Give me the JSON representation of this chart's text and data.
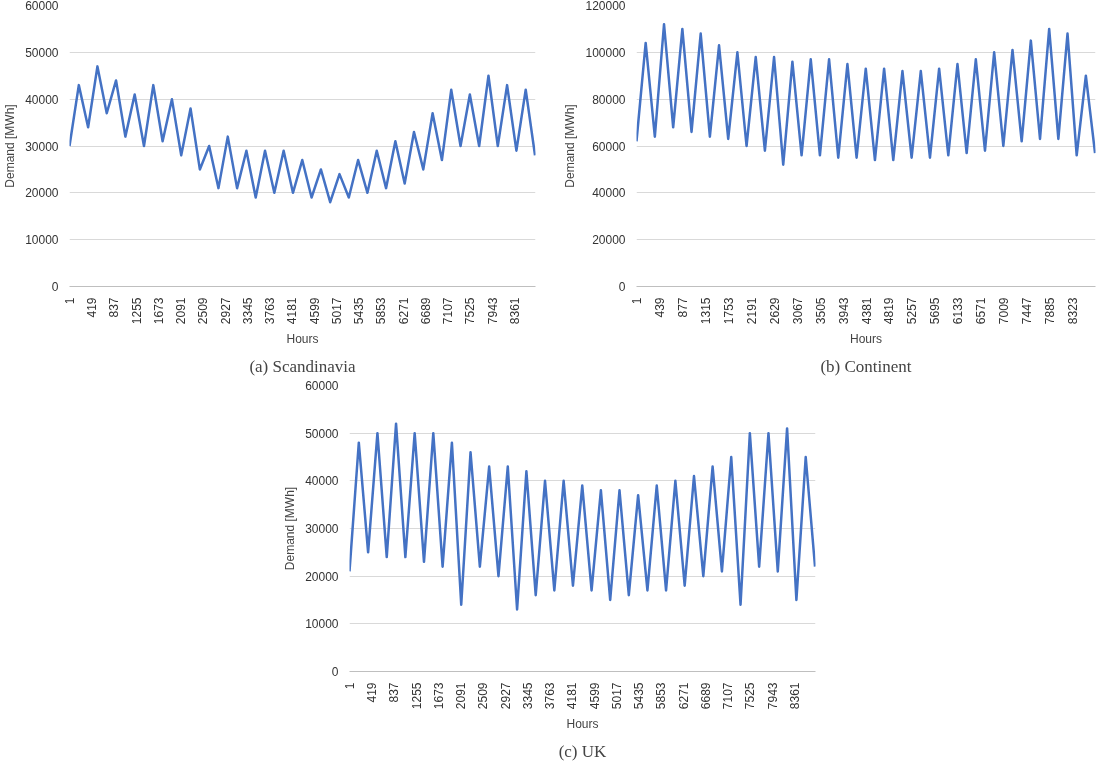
{
  "chart_data": [
    {
      "type": "line",
      "ylabel": "Demand [MWh]",
      "xlabel": "Hours",
      "annotations": [
        "(a) Scandinavia"
      ],
      "grid": "y",
      "xlim": [
        1,
        8760
      ],
      "ylim": [
        0,
        60000
      ],
      "yticks": [
        0,
        10000,
        20000,
        30000,
        40000,
        50000,
        60000
      ],
      "xticks": [
        1,
        419,
        837,
        1255,
        1673,
        2091,
        2509,
        2927,
        3345,
        3763,
        4181,
        4599,
        5017,
        5435,
        5853,
        6271,
        6689,
        7107,
        7525,
        7943,
        8361
      ],
      "x": [
        1,
        176,
        351,
        526,
        701,
        876,
        1051,
        1226,
        1401,
        1576,
        1751,
        1926,
        2101,
        2276,
        2451,
        2626,
        2801,
        2976,
        3151,
        3326,
        3501,
        3676,
        3851,
        4026,
        4201,
        4376,
        4551,
        4726,
        4901,
        5076,
        5251,
        5426,
        5601,
        5776,
        5951,
        6126,
        6301,
        6476,
        6651,
        6826,
        7001,
        7176,
        7351,
        7526,
        7701,
        7876,
        8051,
        8226,
        8401,
        8576,
        8751
      ],
      "series": [
        {
          "color": "#4472c4",
          "values": [
            30000,
            43000,
            34000,
            47000,
            37000,
            44000,
            32000,
            41000,
            30000,
            43000,
            31000,
            40000,
            28000,
            38000,
            25000,
            30000,
            21000,
            32000,
            21000,
            29000,
            19000,
            29000,
            20000,
            29000,
            20000,
            27000,
            19000,
            25000,
            18000,
            24000,
            19000,
            27000,
            20000,
            29000,
            21000,
            31000,
            22000,
            33000,
            25000,
            37000,
            27000,
            42000,
            30000,
            41000,
            30000,
            45000,
            30000,
            43000,
            29000,
            42000,
            28000
          ]
        }
      ]
    },
    {
      "type": "line",
      "ylabel": "Demand [MWh]",
      "xlabel": "Hours",
      "annotations": [
        "(b) Continent"
      ],
      "grid": "y",
      "xlim": [
        1,
        8760
      ],
      "ylim": [
        0,
        120000
      ],
      "yticks": [
        0,
        20000,
        40000,
        60000,
        80000,
        100000,
        120000
      ],
      "xticks": [
        1,
        439,
        877,
        1315,
        1753,
        2191,
        2629,
        3067,
        3505,
        3943,
        4381,
        4819,
        5257,
        5695,
        6133,
        6571,
        7009,
        7447,
        7885,
        8323
      ],
      "x": [
        1,
        176,
        351,
        526,
        701,
        876,
        1051,
        1226,
        1401,
        1576,
        1751,
        1926,
        2101,
        2276,
        2451,
        2626,
        2801,
        2976,
        3151,
        3326,
        3501,
        3676,
        3851,
        4026,
        4201,
        4376,
        4551,
        4726,
        4901,
        5076,
        5251,
        5426,
        5601,
        5776,
        5951,
        6126,
        6301,
        6476,
        6651,
        6826,
        7001,
        7176,
        7351,
        7526,
        7701,
        7876,
        8051,
        8226,
        8401,
        8576,
        8751
      ],
      "series": [
        {
          "color": "#4472c4",
          "values": [
            62000,
            104000,
            64000,
            112000,
            68000,
            110000,
            66000,
            108000,
            64000,
            103000,
            63000,
            100000,
            60000,
            98000,
            58000,
            98000,
            52000,
            96000,
            56000,
            97000,
            56000,
            97000,
            55000,
            95000,
            55000,
            93000,
            54000,
            93000,
            54000,
            92000,
            55000,
            92000,
            55000,
            93000,
            56000,
            95000,
            57000,
            97000,
            58000,
            100000,
            60000,
            101000,
            62000,
            105000,
            63000,
            110000,
            63000,
            108000,
            56000,
            90000,
            57000
          ]
        }
      ]
    },
    {
      "type": "line",
      "ylabel": "Demand [MWh]",
      "xlabel": "Hours",
      "annotations": [
        "(c) UK"
      ],
      "grid": "y",
      "xlim": [
        1,
        8760
      ],
      "ylim": [
        0,
        60000
      ],
      "yticks": [
        0,
        10000,
        20000,
        30000,
        40000,
        50000,
        60000
      ],
      "xticks": [
        1,
        419,
        837,
        1255,
        1673,
        2091,
        2509,
        2927,
        3345,
        3763,
        4181,
        4599,
        5017,
        5435,
        5853,
        6271,
        6689,
        7107,
        7525,
        7943,
        8361
      ],
      "x": [
        1,
        176,
        351,
        526,
        701,
        876,
        1051,
        1226,
        1401,
        1576,
        1751,
        1926,
        2101,
        2276,
        2451,
        2626,
        2801,
        2976,
        3151,
        3326,
        3501,
        3676,
        3851,
        4026,
        4201,
        4376,
        4551,
        4726,
        4901,
        5076,
        5251,
        5426,
        5601,
        5776,
        5951,
        6126,
        6301,
        6476,
        6651,
        6826,
        7001,
        7176,
        7351,
        7526,
        7701,
        7876,
        8051,
        8226,
        8401,
        8576,
        8751
      ],
      "series": [
        {
          "color": "#4472c4",
          "values": [
            21000,
            48000,
            25000,
            50000,
            24000,
            52000,
            24000,
            50000,
            23000,
            50000,
            22000,
            48000,
            14000,
            46000,
            22000,
            43000,
            20000,
            43000,
            13000,
            42000,
            16000,
            40000,
            17000,
            40000,
            18000,
            39000,
            17000,
            38000,
            15000,
            38000,
            16000,
            37000,
            17000,
            39000,
            17000,
            40000,
            18000,
            41000,
            20000,
            43000,
            21000,
            45000,
            14000,
            50000,
            22000,
            50000,
            21000,
            51000,
            15000,
            45000,
            22000
          ]
        }
      ]
    }
  ]
}
